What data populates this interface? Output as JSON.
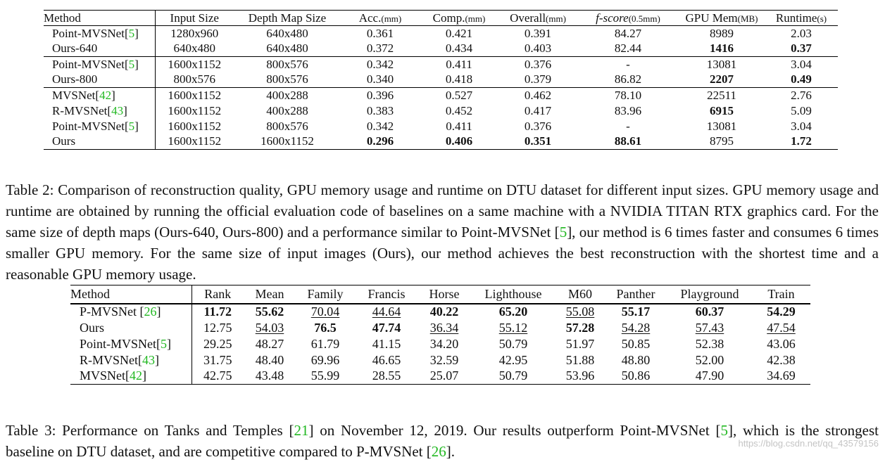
{
  "table2": {
    "columns": [
      {
        "label": "Method",
        "unit": ""
      },
      {
        "label": "Input Size",
        "unit": ""
      },
      {
        "label": "Depth Map Size",
        "unit": ""
      },
      {
        "label": "Acc.",
        "unit": "(mm)"
      },
      {
        "label": "Comp.",
        "unit": "(mm)"
      },
      {
        "label": "Overall",
        "unit": "(mm)"
      },
      {
        "label": "f-score",
        "unit": "(0.5mm)"
      },
      {
        "label": "GPU Mem",
        "unit": "(MB)"
      },
      {
        "label": "Runtime",
        "unit": "(s)"
      }
    ],
    "rows": [
      {
        "group": 1,
        "method": "Point-MVSNet",
        "cite": "5",
        "input": "1280x960",
        "depth": "640x480",
        "acc": "0.361",
        "comp": "0.421",
        "overall": "0.391",
        "fscore": "84.27",
        "gpu": "8989",
        "runtime": "2.03",
        "bold": []
      },
      {
        "group": 1,
        "method": "Ours-640",
        "cite": "",
        "input": "640x480",
        "depth": "640x480",
        "acc": "0.372",
        "comp": "0.434",
        "overall": "0.403",
        "fscore": "82.44",
        "gpu": "1416",
        "runtime": "0.37",
        "bold": [
          "gpu",
          "runtime"
        ]
      },
      {
        "group": 2,
        "method": "Point-MVSNet",
        "cite": "5",
        "input": "1600x1152",
        "depth": "800x576",
        "acc": "0.342",
        "comp": "0.411",
        "overall": "0.376",
        "fscore": "-",
        "gpu": "13081",
        "runtime": "3.04",
        "bold": []
      },
      {
        "group": 2,
        "method": "Ours-800",
        "cite": "",
        "input": "800x576",
        "depth": "800x576",
        "acc": "0.340",
        "comp": "0.418",
        "overall": "0.379",
        "fscore": "86.82",
        "gpu": "2207",
        "runtime": "0.49",
        "bold": [
          "gpu",
          "runtime"
        ]
      },
      {
        "group": 3,
        "method": "MVSNet",
        "cite": "42",
        "input": "1600x1152",
        "depth": "400x288",
        "acc": "0.396",
        "comp": "0.527",
        "overall": "0.462",
        "fscore": "78.10",
        "gpu": "22511",
        "runtime": "2.76",
        "bold": []
      },
      {
        "group": 3,
        "method": "R-MVSNet",
        "cite": "43",
        "input": "1600x1152",
        "depth": "400x288",
        "acc": "0.383",
        "comp": "0.452",
        "overall": "0.417",
        "fscore": "83.96",
        "gpu": "6915",
        "runtime": "5.09",
        "bold": [
          "gpu"
        ]
      },
      {
        "group": 3,
        "method": "Point-MVSNet",
        "cite": "5",
        "input": "1600x1152",
        "depth": "800x576",
        "acc": "0.342",
        "comp": "0.411",
        "overall": "0.376",
        "fscore": "-",
        "gpu": "13081",
        "runtime": "3.04",
        "bold": []
      },
      {
        "group": 3,
        "method": "Ours",
        "cite": "",
        "input": "1600x1152",
        "depth": "1600x1152",
        "acc": "0.296",
        "comp": "0.406",
        "overall": "0.351",
        "fscore": "88.61",
        "gpu": "8795",
        "runtime": "1.72",
        "bold": [
          "acc",
          "comp",
          "overall",
          "fscore",
          "runtime"
        ]
      }
    ]
  },
  "caption2": [
    {
      "t": "Table 2: Comparison of reconstruction quality, GPU memory usage and runtime on DTU dataset for different input sizes. GPU memory usage and runtime are obtained by running the official evaluation code of baselines on a same machine with a NVIDIA TITAN RTX graphics card.  For the same size of depth maps (Ours-640, Ours-800) and a performance similar to Point-MVSNet ["
    },
    {
      "t": "5",
      "cite": true
    },
    {
      "t": "], our method is 6 times faster and consumes 6 times smaller GPU memory. For the same size of input images (Ours), our method achieves the best reconstruction with the shortest time and a reasonable GPU memory usage."
    }
  ],
  "table3": {
    "columns": [
      "Method",
      "Rank",
      "Mean",
      "Family",
      "Francis",
      "Horse",
      "Lighthouse",
      "M60",
      "Panther",
      "Playground",
      "Train"
    ],
    "rows": [
      {
        "method": "P-MVSNet ",
        "cite": "26",
        "cells": [
          {
            "v": "11.72",
            "s": "b"
          },
          {
            "v": "55.62",
            "s": "b"
          },
          {
            "v": "70.04",
            "s": "u"
          },
          {
            "v": "44.64",
            "s": "u"
          },
          {
            "v": "40.22",
            "s": "b"
          },
          {
            "v": "65.20",
            "s": "b"
          },
          {
            "v": "55.08",
            "s": "u"
          },
          {
            "v": "55.17",
            "s": "b"
          },
          {
            "v": "60.37",
            "s": "b"
          },
          {
            "v": "54.29",
            "s": "b"
          }
        ]
      },
      {
        "method": "Ours",
        "cite": "",
        "cells": [
          {
            "v": "12.75",
            "s": ""
          },
          {
            "v": "54.03",
            "s": "u"
          },
          {
            "v": "76.5",
            "s": "b"
          },
          {
            "v": "47.74",
            "s": "b"
          },
          {
            "v": "36.34",
            "s": "u"
          },
          {
            "v": "55.12",
            "s": "u"
          },
          {
            "v": "57.28",
            "s": "b"
          },
          {
            "v": "54.28",
            "s": "u"
          },
          {
            "v": "57.43",
            "s": "u"
          },
          {
            "v": "47.54",
            "s": "u"
          }
        ]
      },
      {
        "method": "Point-MVSNet",
        "cite": "5",
        "cells": [
          {
            "v": "29.25",
            "s": ""
          },
          {
            "v": "48.27",
            "s": ""
          },
          {
            "v": "61.79",
            "s": ""
          },
          {
            "v": "41.15",
            "s": ""
          },
          {
            "v": "34.20",
            "s": ""
          },
          {
            "v": "50.79",
            "s": ""
          },
          {
            "v": "51.97",
            "s": ""
          },
          {
            "v": "50.85",
            "s": ""
          },
          {
            "v": "52.38",
            "s": ""
          },
          {
            "v": "43.06",
            "s": ""
          }
        ]
      },
      {
        "method": "R-MVSNet",
        "cite": "43",
        "cells": [
          {
            "v": "31.75",
            "s": ""
          },
          {
            "v": "48.40",
            "s": ""
          },
          {
            "v": "69.96",
            "s": ""
          },
          {
            "v": "46.65",
            "s": ""
          },
          {
            "v": "32.59",
            "s": ""
          },
          {
            "v": "42.95",
            "s": ""
          },
          {
            "v": "51.88",
            "s": ""
          },
          {
            "v": "48.80",
            "s": ""
          },
          {
            "v": "52.00",
            "s": ""
          },
          {
            "v": "42.38",
            "s": ""
          }
        ]
      },
      {
        "method": "MVSNet",
        "cite": "42",
        "cells": [
          {
            "v": "42.75",
            "s": ""
          },
          {
            "v": "43.48",
            "s": ""
          },
          {
            "v": "55.99",
            "s": ""
          },
          {
            "v": "28.55",
            "s": ""
          },
          {
            "v": "25.07",
            "s": ""
          },
          {
            "v": "50.79",
            "s": ""
          },
          {
            "v": "53.96",
            "s": ""
          },
          {
            "v": "50.86",
            "s": ""
          },
          {
            "v": "47.90",
            "s": ""
          },
          {
            "v": "34.69",
            "s": ""
          }
        ]
      }
    ]
  },
  "caption3": [
    {
      "t": "Table 3: Performance on Tanks and Temples ["
    },
    {
      "t": "21",
      "cite": true
    },
    {
      "t": "] on November 12, 2019. Our results outperform Point-MVSNet ["
    },
    {
      "t": "5",
      "cite": true
    },
    {
      "t": "], which is the strongest baseline on DTU dataset, and are competitive compared to P-MVSNet ["
    },
    {
      "t": "26",
      "cite": true
    },
    {
      "t": "]."
    }
  ],
  "watermark": "https://blog.csdn.net/qq_43579156",
  "colors": {
    "citation": "#22b822",
    "text": "#111111",
    "watermark": "#c4c4c4"
  }
}
